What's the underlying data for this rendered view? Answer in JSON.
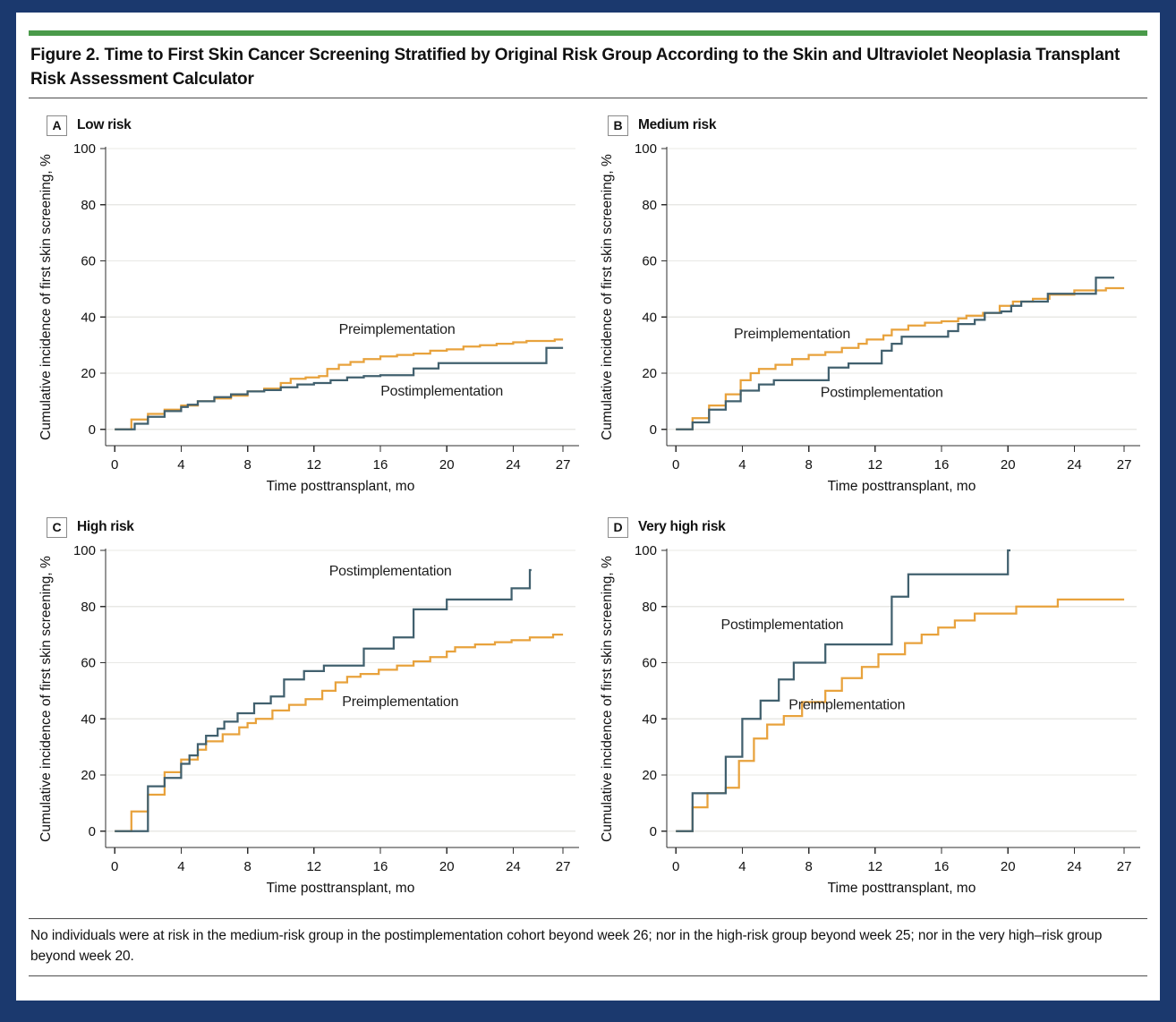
{
  "figure": {
    "title": "Figure 2. Time to First Skin Cancer Screening Stratified by Original Risk Group According to the Skin and Ultraviolet Neoplasia Transplant Risk Assessment Calculator",
    "footnote": "No individuals were at risk in the medium-risk group in the postimplementation cohort beyond week 26; nor in the high-risk group beyond week 25; nor in the very high–risk group beyond week 20."
  },
  "colors": {
    "frame_navy": "#1B396E",
    "accent_green": "#4A9A4A",
    "preimplementation_orange": "#E8A23C",
    "postimplementation_slate": "#41606E",
    "gridline": "#E8E8E5",
    "axis": "#2f2f2f",
    "text": "#111111"
  },
  "chart_data": [
    {
      "panel": "A",
      "title": "Low risk",
      "type": "line",
      "line_style": "step-after",
      "xlabel": "Time posttransplant, mo",
      "ylabel": "Cumulative incidence of first skin screening, %",
      "xlim": [
        0,
        27
      ],
      "ylim": [
        0,
        100
      ],
      "grid": "horizontal",
      "xticks": [
        0,
        4,
        8,
        12,
        16,
        20,
        24,
        27
      ],
      "yticks": [
        0,
        20,
        40,
        60,
        80,
        100
      ],
      "series": [
        {
          "name": "Preimplementation",
          "color": "#E8A23C",
          "end": 27,
          "label_x": 17,
          "label_y": 34,
          "points": [
            [
              0,
              0
            ],
            [
              1,
              3.5
            ],
            [
              2,
              5.5
            ],
            [
              3,
              7
            ],
            [
              4,
              8.5
            ],
            [
              5,
              10
            ],
            [
              6,
              11
            ],
            [
              7,
              12
            ],
            [
              8,
              13.5
            ],
            [
              9,
              14.5
            ],
            [
              10,
              16.5
            ],
            [
              10.6,
              18
            ],
            [
              11.5,
              18.5
            ],
            [
              12.3,
              19
            ],
            [
              12.8,
              21.5
            ],
            [
              13.5,
              23
            ],
            [
              14.2,
              24
            ],
            [
              15,
              25
            ],
            [
              16,
              26
            ],
            [
              17,
              26.5
            ],
            [
              18,
              27
            ],
            [
              19,
              28
            ],
            [
              20,
              28.5
            ],
            [
              21,
              29.5
            ],
            [
              22,
              30
            ],
            [
              23,
              30.5
            ],
            [
              24,
              31
            ],
            [
              24.8,
              31.5
            ],
            [
              26.5,
              32
            ]
          ]
        },
        {
          "name": "Postimplementation",
          "color": "#41606E",
          "end": 27,
          "label_x": 19.7,
          "label_y": 12,
          "points": [
            [
              0,
              0
            ],
            [
              1.2,
              2
            ],
            [
              2,
              4.5
            ],
            [
              3,
              6.5
            ],
            [
              4,
              8
            ],
            [
              4.4,
              8.8
            ],
            [
              5,
              10
            ],
            [
              6,
              11.5
            ],
            [
              7,
              12.5
            ],
            [
              8,
              13.5
            ],
            [
              9,
              14
            ],
            [
              10,
              15
            ],
            [
              11,
              16
            ],
            [
              12,
              16.5
            ],
            [
              13,
              17.5
            ],
            [
              14,
              18.5
            ],
            [
              15,
              19
            ],
            [
              16,
              19.3
            ],
            [
              18,
              21.7
            ],
            [
              19.5,
              23.6
            ],
            [
              26,
              29
            ]
          ]
        }
      ]
    },
    {
      "panel": "B",
      "title": "Medium risk",
      "type": "line",
      "line_style": "step-after",
      "xlabel": "Time posttransplant, mo",
      "ylabel": "Cumulative incidence of first skin screening, %",
      "xlim": [
        0,
        27
      ],
      "ylim": [
        0,
        100
      ],
      "grid": "horizontal",
      "xticks": [
        0,
        4,
        8,
        12,
        16,
        20,
        24,
        27
      ],
      "yticks": [
        0,
        20,
        40,
        60,
        80,
        100
      ],
      "series": [
        {
          "name": "Preimplementation",
          "color": "#E8A23C",
          "end": 27,
          "label_x": 7,
          "label_y": 32.5,
          "points": [
            [
              0,
              0
            ],
            [
              1,
              4
            ],
            [
              2,
              8.5
            ],
            [
              3,
              12.5
            ],
            [
              3.9,
              17.5
            ],
            [
              4.5,
              20
            ],
            [
              5,
              21.5
            ],
            [
              6,
              23
            ],
            [
              7,
              25
            ],
            [
              8,
              26.5
            ],
            [
              9,
              27.5
            ],
            [
              10,
              29
            ],
            [
              11,
              30.5
            ],
            [
              11.5,
              32
            ],
            [
              12.5,
              33.5
            ],
            [
              13,
              35.5
            ],
            [
              14,
              37
            ],
            [
              15,
              38
            ],
            [
              16,
              38.5
            ],
            [
              17,
              39.5
            ],
            [
              17.5,
              40.5
            ],
            [
              18.5,
              41.5
            ],
            [
              19.5,
              44
            ],
            [
              20.3,
              45.5
            ],
            [
              21.5,
              46.5
            ],
            [
              22.5,
              48
            ],
            [
              24,
              49.5
            ],
            [
              25.9,
              50.3
            ]
          ]
        },
        {
          "name": "Postimplementation",
          "color": "#41606E",
          "end": 26.4,
          "label_x": 12.4,
          "label_y": 11.5,
          "points": [
            [
              0,
              0
            ],
            [
              1,
              2.5
            ],
            [
              2,
              7
            ],
            [
              3,
              10
            ],
            [
              3.9,
              13.8
            ],
            [
              5,
              16
            ],
            [
              5.9,
              17.5
            ],
            [
              9.2,
              22
            ],
            [
              10.4,
              23.5
            ],
            [
              12.4,
              28
            ],
            [
              13,
              30.5
            ],
            [
              13.6,
              33
            ],
            [
              16.4,
              35
            ],
            [
              17,
              37.5
            ],
            [
              18,
              39
            ],
            [
              18.6,
              41.5
            ],
            [
              19.6,
              42
            ],
            [
              20.2,
              44
            ],
            [
              20.8,
              45.5
            ],
            [
              22.4,
              48.3
            ],
            [
              25.3,
              54
            ]
          ]
        }
      ]
    },
    {
      "panel": "C",
      "title": "High risk",
      "type": "line",
      "line_style": "step-after",
      "xlabel": "Time posttransplant, mo",
      "ylabel": "Cumulative incidence of first skin screening, %",
      "xlim": [
        0,
        27
      ],
      "ylim": [
        0,
        100
      ],
      "grid": "horizontal",
      "xticks": [
        0,
        4,
        8,
        12,
        16,
        20,
        24,
        27
      ],
      "yticks": [
        0,
        20,
        40,
        60,
        80,
        100
      ],
      "series": [
        {
          "name": "Preimplementation",
          "color": "#E8A23C",
          "end": 27,
          "label_x": 17.2,
          "label_y": 44.5,
          "points": [
            [
              0,
              0
            ],
            [
              1,
              7
            ],
            [
              2,
              13
            ],
            [
              3,
              21
            ],
            [
              4,
              25.5
            ],
            [
              5,
              29
            ],
            [
              5.5,
              32
            ],
            [
              6.5,
              34.5
            ],
            [
              7.5,
              37
            ],
            [
              8,
              38.5
            ],
            [
              8.5,
              40
            ],
            [
              9.5,
              43
            ],
            [
              10.5,
              45
            ],
            [
              11.5,
              47
            ],
            [
              12.5,
              50
            ],
            [
              13.3,
              53
            ],
            [
              14,
              55
            ],
            [
              14.8,
              56
            ],
            [
              15.9,
              57.5
            ],
            [
              17,
              59
            ],
            [
              18,
              60.5
            ],
            [
              19,
              62
            ],
            [
              20,
              64
            ],
            [
              20.5,
              65.5
            ],
            [
              21.7,
              66.5
            ],
            [
              22.9,
              67.3
            ],
            [
              23.9,
              68
            ],
            [
              25,
              69
            ],
            [
              26.4,
              70
            ]
          ]
        },
        {
          "name": "Postimplementation",
          "color": "#41606E",
          "end": 25.1,
          "label_x": 16.6,
          "label_y": 91,
          "points": [
            [
              0,
              0
            ],
            [
              2,
              16
            ],
            [
              3,
              19
            ],
            [
              4,
              24
            ],
            [
              4.5,
              27
            ],
            [
              5,
              31
            ],
            [
              5.5,
              34
            ],
            [
              6.2,
              36.5
            ],
            [
              6.6,
              39
            ],
            [
              7.4,
              42
            ],
            [
              8.4,
              45.5
            ],
            [
              9.4,
              48
            ],
            [
              10.2,
              54
            ],
            [
              11.4,
              57
            ],
            [
              12.6,
              59
            ],
            [
              15,
              65
            ],
            [
              16.8,
              69
            ],
            [
              18,
              79
            ],
            [
              20,
              82.5
            ],
            [
              23.9,
              86.5
            ],
            [
              25,
              93
            ]
          ]
        }
      ]
    },
    {
      "panel": "D",
      "title": "Very high risk",
      "type": "line",
      "line_style": "step-after",
      "xlabel": "Time posttransplant, mo",
      "ylabel": "Cumulative incidence of first skin screening, %",
      "xlim": [
        0,
        27
      ],
      "ylim": [
        0,
        100
      ],
      "grid": "horizontal",
      "xticks": [
        0,
        4,
        8,
        12,
        16,
        20,
        24,
        27
      ],
      "yticks": [
        0,
        20,
        40,
        60,
        80,
        100
      ],
      "series": [
        {
          "name": "Preimplementation",
          "color": "#E8A23C",
          "end": 27,
          "label_x": 10.3,
          "label_y": 43.5,
          "points": [
            [
              0,
              0
            ],
            [
              1,
              8.5
            ],
            [
              1.9,
              13.5
            ],
            [
              3,
              15.5
            ],
            [
              3.8,
              25
            ],
            [
              4.7,
              33
            ],
            [
              5.5,
              38
            ],
            [
              6.5,
              41
            ],
            [
              7.6,
              46
            ],
            [
              9,
              50
            ],
            [
              10,
              54.5
            ],
            [
              11.2,
              58.5
            ],
            [
              12.2,
              63
            ],
            [
              13.8,
              67
            ],
            [
              14.8,
              70
            ],
            [
              15.8,
              72.5
            ],
            [
              16.8,
              75
            ],
            [
              18,
              77.5
            ],
            [
              20.5,
              80
            ],
            [
              23,
              82.5
            ]
          ]
        },
        {
          "name": "Postimplementation",
          "color": "#41606E",
          "end": 20.15,
          "label_x": 6.4,
          "label_y": 72,
          "points": [
            [
              0,
              0
            ],
            [
              1,
              13.5
            ],
            [
              3,
              26.5
            ],
            [
              4,
              40
            ],
            [
              5.1,
              46.5
            ],
            [
              6.2,
              54
            ],
            [
              7.1,
              60
            ],
            [
              9,
              66.5
            ],
            [
              13,
              83.5
            ],
            [
              14,
              91.5
            ],
            [
              20,
              100
            ]
          ]
        }
      ]
    }
  ]
}
